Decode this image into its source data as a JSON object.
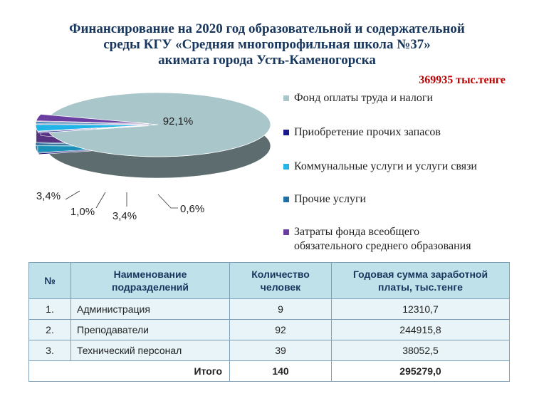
{
  "title": {
    "line1": "Финансирование на 2020 год образовательной и содержательной",
    "line2": "среды КГУ «Средняя многопрофильная школа №37»",
    "line3": "акимата города Усть-Каменогорска"
  },
  "total_label": "369935 тыс.тенге",
  "chart_data": {
    "type": "pie",
    "style": "3d",
    "slices": [
      {
        "label": "Фонд оплаты труда и налоги",
        "value": 92.1,
        "display": "92,1%",
        "color": "#a9c6ca"
      },
      {
        "label": "Приобретение прочих запасов",
        "value": 0.6,
        "display": "0,6%",
        "color": "#1a1a8c"
      },
      {
        "label": "Коммунальные услуги и услуги связи",
        "value": 3.4,
        "display": "3,4%",
        "color": "#21b4e6"
      },
      {
        "label": "Прочие услуги",
        "value": 1.0,
        "display": "1,0%",
        "color": "#1f6fa8"
      },
      {
        "label": "Затраты фонда всеобщего обязательного среднего образования",
        "value": 3.4,
        "display": "3,4%",
        "color": "#6b3fa0"
      }
    ],
    "legend_position": "right"
  },
  "legend": [
    {
      "lines": [
        "Фонд оплаты труда и налоги"
      ],
      "color": "#a9c6ca"
    },
    {
      "lines": [
        "Приобретение прочих запасов"
      ],
      "color": "#1a1a8c"
    },
    {
      "lines": [
        "Коммунальные услуги и услуги связи"
      ],
      "color": "#21b4e6"
    },
    {
      "lines": [
        "Прочие услуги"
      ],
      "color": "#1f6fa8"
    },
    {
      "lines": [
        "Затраты фонда всеобщего",
        "обязательного среднего образования"
      ],
      "color": "#6b3fa0"
    }
  ],
  "table": {
    "headers": [
      "№",
      "Наименование подразделений",
      "Количество человек",
      "Годовая сумма заработной платы, тыс.тенге"
    ],
    "rows": [
      [
        "1.",
        "Администрация",
        "9",
        "12310,7"
      ],
      [
        "2.",
        "Преподаватели",
        "92",
        "244915,8"
      ],
      [
        "3.",
        "Технический  персонал",
        "39",
        "38052,5"
      ]
    ],
    "footer": {
      "label": "Итого",
      "count": "140",
      "sum": "295279,0"
    }
  }
}
